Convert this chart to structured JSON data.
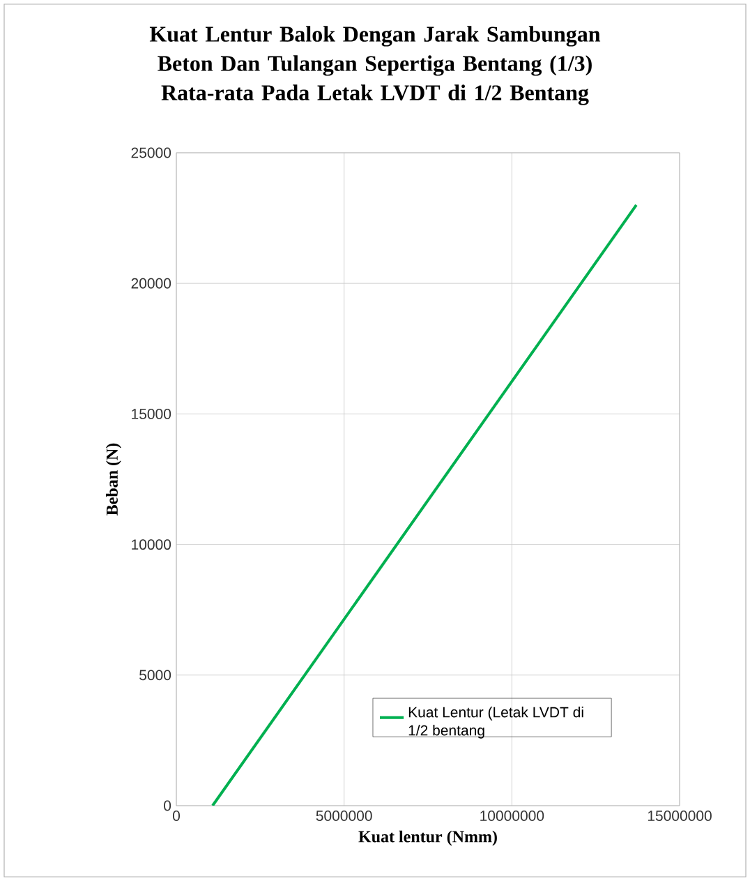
{
  "chart_data": {
    "type": "line",
    "title": "Kuat Lentur Balok  Dengan Jarak Sambungan Beton Dan Tulangan Sepertiga Bentang (1/3) Rata-rata Pada Letak LVDT di 1/2 Bentang",
    "xlabel": "Kuat lentur  (Nmm)",
    "ylabel": "Beban  (N)",
    "series": [
      {
        "name": "Kuat Lentur (Letak LVDT di 1/2 bentang",
        "color": "#00b050",
        "x": [
          1080000,
          13710000
        ],
        "values": [
          0,
          23000
        ]
      }
    ],
    "xlim": [
      0,
      15000000
    ],
    "xticks": [
      0,
      5000000,
      10000000,
      15000000
    ],
    "ylim": [
      0,
      25000
    ],
    "yticks": [
      0,
      5000,
      10000,
      15000,
      20000,
      25000
    ],
    "grid": true,
    "legend": "bottom right",
    "marker": "none",
    "line_style": "solid"
  }
}
